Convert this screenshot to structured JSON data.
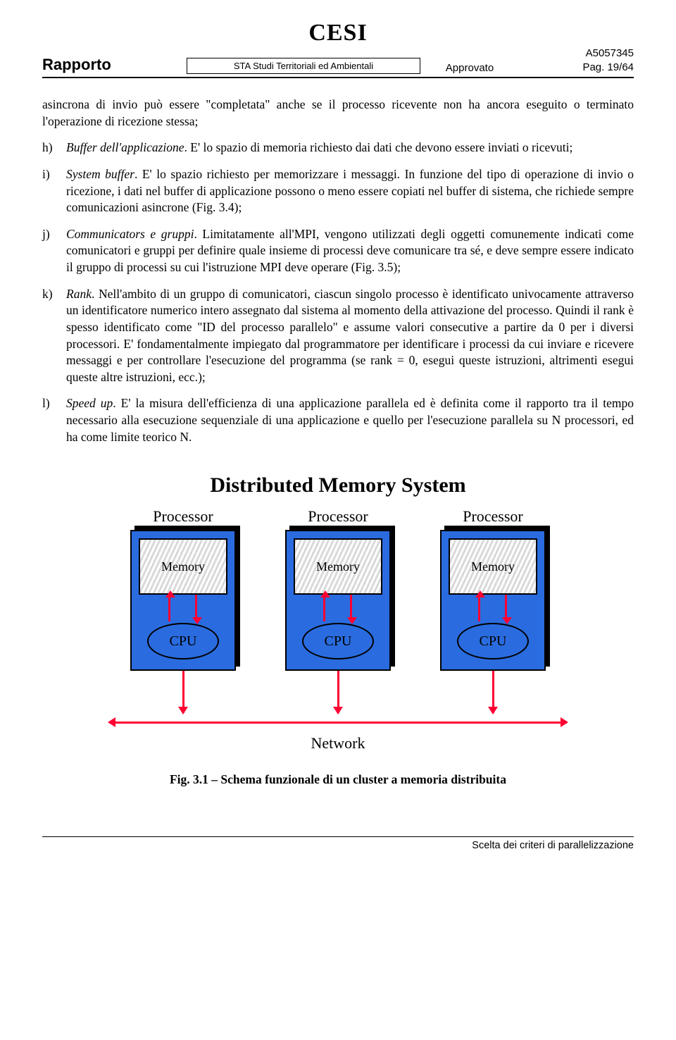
{
  "header": {
    "logo": "CESI",
    "rapporto": "Rapporto",
    "middle": "STA Studi Territoriali ed Ambientali",
    "approvato": "Approvato",
    "code": "A5057345",
    "page": "Pag. 19/64"
  },
  "intro": "asincrona di invio può essere \"completata\" anche se il processo ricevente non ha ancora eseguito o terminato l'operazione di ricezione stessa;",
  "items": {
    "h": {
      "letter": "h)",
      "term": "Buffer dell'applicazione",
      "rest": ". E' lo spazio di memoria richiesto dai dati che devono essere inviati o ricevuti;"
    },
    "i": {
      "letter": "i)",
      "term": "System buffer",
      "rest": ". E' lo spazio richiesto per memorizzare i messaggi. In funzione del tipo di operazione di invio o ricezione, i dati nel buffer di applicazione possono o meno essere copiati nel buffer di sistema, che richiede sempre comunicazioni asincrone (Fig. 3.4);"
    },
    "j": {
      "letter": "j)",
      "term": "Communicators e gruppi",
      "rest": ". Limitatamente all'MPI, vengono utilizzati degli oggetti comunemente indicati come comunicatori e gruppi per definire quale insieme di processi deve comunicare tra sé, e deve sempre essere indicato il gruppo di processi su cui l'istruzione MPI deve operare (Fig. 3.5);"
    },
    "k": {
      "letter": "k)",
      "term": "Rank",
      "rest": ". Nell'ambito di un gruppo di comunicatori, ciascun singolo processo è identificato univocamente attraverso un identificatore numerico intero assegnato dal sistema al momento della attivazione del processo. Quindi il rank è spesso identificato come \"ID del processo parallelo\" e assume valori consecutive a partire da 0 per i diversi processori. E' fondamentalmente impiegato dal programmatore per identificare i processi da cui inviare e ricevere messaggi e per controllare l'esecuzione del programma (se rank = 0, esegui queste istruzioni, altrimenti esegui queste altre istruzioni, ecc.);"
    },
    "l": {
      "letter": "l)",
      "term": "Speed up",
      "rest": ". E' la misura dell'efficienza di una applicazione parallela ed è definita come il rapporto tra il tempo necessario alla esecuzione sequenziale di una applicazione e quello per l'esecuzione parallela su N processori, ed ha come limite teorico N."
    }
  },
  "diagram": {
    "title": "Distributed Memory System",
    "processor": "Processor",
    "memory": "Memory",
    "cpu": "CPU",
    "network": "Network",
    "colors": {
      "box": "#2a6cdf",
      "arrow": "#ff0033",
      "border": "#000000",
      "mem_pattern_a": "#d9d9d9",
      "mem_pattern_b": "#ffffff"
    },
    "n_processors": 3
  },
  "caption": "Fig. 3.1 – Schema funzionale di un cluster a memoria distribuita",
  "footer": "Scelta dei criteri di parallelizzazione"
}
